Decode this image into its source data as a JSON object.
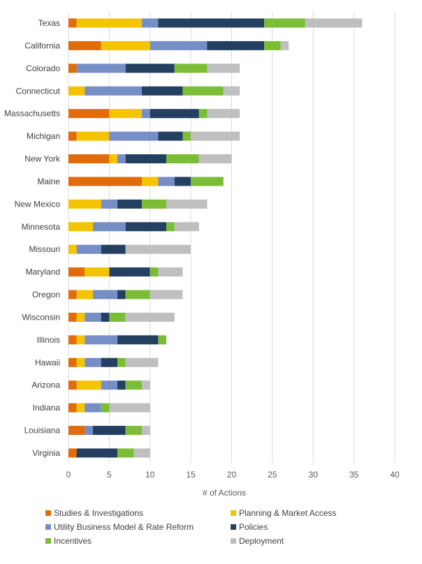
{
  "chart_data": {
    "type": "bar",
    "orientation": "horizontal",
    "stacked": true,
    "xlabel": "# of Actions",
    "ylabel": "",
    "xlim": [
      0,
      40
    ],
    "xticks": [
      0,
      5,
      10,
      15,
      20,
      25,
      30,
      35,
      40
    ],
    "grid": "vertical",
    "legend_position": "bottom",
    "categories": [
      "Texas",
      "California",
      "Colorado",
      "Connecticut",
      "Massachusetts",
      "Michigan",
      "New York",
      "Maine",
      "New Mexico",
      "Minnesota",
      "Missouri",
      "Maryland",
      "Oregon",
      "Wisconsin",
      "Illinois",
      "Hawaii",
      "Arizona",
      "Indiana",
      "Louisiana",
      "Virginia"
    ],
    "series": [
      {
        "name": "Studies & Investigations",
        "color": "#E36C0A",
        "values": [
          1,
          4,
          1,
          0,
          5,
          1,
          5,
          9,
          0,
          0,
          0,
          2,
          1,
          1,
          1,
          1,
          1,
          1,
          2,
          1
        ]
      },
      {
        "name": "Planning & Market Access",
        "color": "#F5C400",
        "values": [
          8,
          6,
          0,
          2,
          4,
          4,
          1,
          2,
          4,
          3,
          1,
          3,
          2,
          1,
          1,
          1,
          3,
          1,
          0,
          0
        ]
      },
      {
        "name": "Utility Business Model & Rate Reform",
        "color": "#768DC6",
        "values": [
          2,
          7,
          6,
          7,
          1,
          6,
          1,
          2,
          2,
          4,
          3,
          0,
          3,
          2,
          4,
          2,
          2,
          2,
          1,
          0
        ]
      },
      {
        "name": "Policies",
        "color": "#253F61",
        "values": [
          13,
          7,
          6,
          5,
          6,
          3,
          5,
          2,
          3,
          5,
          3,
          5,
          1,
          1,
          5,
          2,
          1,
          0,
          4,
          5
        ]
      },
      {
        "name": "Incentives",
        "color": "#7BBE35",
        "values": [
          5,
          2,
          4,
          5,
          1,
          1,
          4,
          4,
          3,
          1,
          0,
          1,
          3,
          2,
          1,
          1,
          2,
          1,
          2,
          2
        ]
      },
      {
        "name": "Deployment",
        "color": "#BFBFBF",
        "values": [
          7,
          1,
          4,
          2,
          4,
          6,
          4,
          0,
          5,
          3,
          8,
          3,
          4,
          6,
          0,
          4,
          1,
          5,
          1,
          2
        ]
      }
    ]
  }
}
